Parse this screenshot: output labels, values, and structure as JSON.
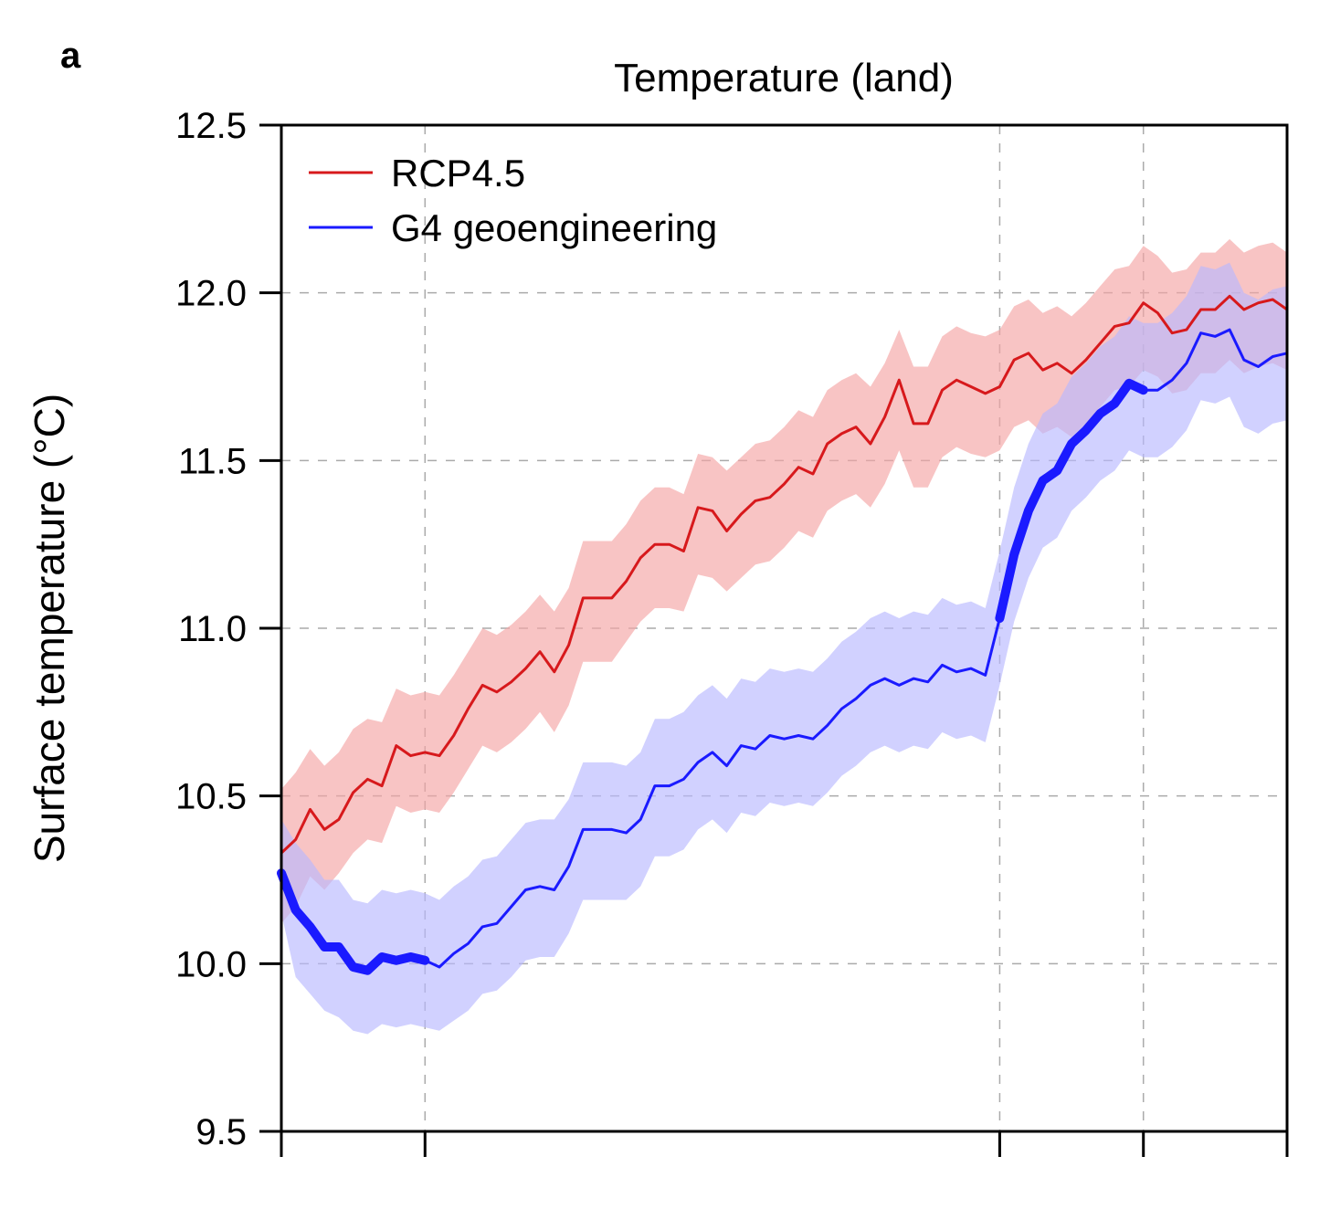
{
  "panel_label": "a",
  "chart_data": {
    "type": "line",
    "title": "Temperature (land)",
    "xlabel": "",
    "ylabel": "Surface temperature (°C)",
    "ylim": [
      9.5,
      12.5
    ],
    "yticks": [
      9.5,
      10.0,
      10.5,
      11.0,
      11.5,
      12.0,
      12.5
    ],
    "ytick_labels": [
      "9.5",
      "10.0",
      "10.5",
      "11.0",
      "11.5",
      "12.0",
      "12.5"
    ],
    "xlim": [
      0,
      70
    ],
    "xticks": [
      0,
      10,
      50,
      60,
      70
    ],
    "xgrid": [
      10,
      50,
      60
    ],
    "grid": true,
    "legend_position": "top-left",
    "x": [
      0,
      1,
      2,
      3,
      4,
      5,
      6,
      7,
      8,
      9,
      10,
      11,
      12,
      13,
      14,
      15,
      16,
      17,
      18,
      19,
      20,
      21,
      22,
      23,
      24,
      25,
      26,
      27,
      28,
      29,
      30,
      31,
      32,
      33,
      34,
      35,
      36,
      37,
      38,
      39,
      40,
      41,
      42,
      43,
      44,
      45,
      46,
      47,
      48,
      49,
      50,
      51,
      52,
      53,
      54,
      55,
      56,
      57,
      58,
      59,
      60,
      61,
      62,
      63,
      64,
      65,
      66,
      67,
      68,
      69,
      70
    ],
    "series": [
      {
        "name": "RCP4.5",
        "color": "#d7191c",
        "band_color": "#f4a5a5",
        "values": [
          10.33,
          10.37,
          10.46,
          10.4,
          10.43,
          10.51,
          10.55,
          10.53,
          10.65,
          10.62,
          10.63,
          10.62,
          10.68,
          10.76,
          10.83,
          10.81,
          10.84,
          10.88,
          10.93,
          10.87,
          10.95,
          11.09,
          11.09,
          11.09,
          11.14,
          11.21,
          11.25,
          11.25,
          11.23,
          11.36,
          11.35,
          11.29,
          11.34,
          11.38,
          11.39,
          11.43,
          11.48,
          11.46,
          11.55,
          11.58,
          11.6,
          11.55,
          11.63,
          11.74,
          11.61,
          11.61,
          11.71,
          11.74,
          11.72,
          11.7,
          11.72,
          11.8,
          11.82,
          11.77,
          11.79,
          11.76,
          11.8,
          11.85,
          11.9,
          11.91,
          11.97,
          11.94,
          11.88,
          11.89,
          11.95,
          11.95,
          11.99,
          11.95,
          11.97,
          11.98,
          11.95
        ],
        "lower": [
          10.12,
          10.17,
          10.26,
          10.22,
          10.27,
          10.33,
          10.37,
          10.36,
          10.47,
          10.45,
          10.46,
          10.45,
          10.51,
          10.58,
          10.65,
          10.63,
          10.66,
          10.7,
          10.75,
          10.69,
          10.77,
          10.9,
          10.9,
          10.9,
          10.96,
          11.02,
          11.06,
          11.06,
          11.05,
          11.16,
          11.15,
          11.11,
          11.15,
          11.19,
          11.2,
          11.24,
          11.29,
          11.27,
          11.35,
          11.38,
          11.4,
          11.36,
          11.43,
          11.53,
          11.42,
          11.42,
          11.51,
          11.54,
          11.52,
          11.51,
          11.53,
          11.6,
          11.62,
          11.58,
          11.6,
          11.57,
          11.61,
          11.66,
          11.71,
          11.72,
          11.77,
          11.75,
          11.7,
          11.71,
          11.76,
          11.76,
          11.8,
          11.76,
          11.78,
          11.79,
          11.77
        ],
        "upper": [
          10.52,
          10.57,
          10.64,
          10.59,
          10.63,
          10.7,
          10.73,
          10.72,
          10.82,
          10.8,
          10.81,
          10.8,
          10.86,
          10.93,
          11.0,
          10.98,
          11.01,
          11.05,
          11.1,
          11.05,
          11.12,
          11.26,
          11.26,
          11.26,
          11.31,
          11.38,
          11.42,
          11.42,
          11.4,
          11.52,
          11.51,
          11.47,
          11.51,
          11.55,
          11.56,
          11.6,
          11.65,
          11.63,
          11.71,
          11.74,
          11.76,
          11.72,
          11.79,
          11.89,
          11.78,
          11.78,
          11.87,
          11.9,
          11.88,
          11.87,
          11.89,
          11.96,
          11.98,
          11.94,
          11.96,
          11.93,
          11.97,
          12.02,
          12.07,
          12.08,
          12.14,
          12.11,
          12.06,
          12.07,
          12.12,
          12.12,
          12.16,
          12.12,
          12.14,
          12.15,
          12.12
        ]
      },
      {
        "name": "G4 geoengineering",
        "color": "#1a1aff",
        "band_color": "#b8b8ff",
        "values": [
          10.27,
          10.16,
          10.11,
          10.05,
          10.05,
          9.99,
          9.98,
          10.02,
          10.01,
          10.02,
          10.01,
          9.99,
          10.03,
          10.06,
          10.11,
          10.12,
          10.17,
          10.22,
          10.23,
          10.22,
          10.29,
          10.4,
          10.4,
          10.4,
          10.39,
          10.43,
          10.53,
          10.53,
          10.55,
          10.6,
          10.63,
          10.59,
          10.65,
          10.64,
          10.68,
          10.67,
          10.68,
          10.67,
          10.71,
          10.76,
          10.79,
          10.83,
          10.85,
          10.83,
          10.85,
          10.84,
          10.89,
          10.87,
          10.88,
          10.86,
          11.03,
          11.22,
          11.35,
          11.44,
          11.47,
          11.55,
          11.59,
          11.64,
          11.67,
          11.73,
          11.71,
          11.71,
          11.74,
          11.79,
          11.88,
          11.87,
          11.89,
          11.8,
          11.78,
          11.81,
          11.82
        ],
        "lower": [
          10.15,
          9.96,
          9.91,
          9.86,
          9.84,
          9.8,
          9.79,
          9.82,
          9.81,
          9.82,
          9.81,
          9.8,
          9.83,
          9.86,
          9.91,
          9.92,
          9.96,
          10.01,
          10.02,
          10.02,
          10.09,
          10.19,
          10.19,
          10.19,
          10.19,
          10.23,
          10.32,
          10.32,
          10.34,
          10.4,
          10.43,
          10.39,
          10.45,
          10.44,
          10.48,
          10.47,
          10.48,
          10.47,
          10.51,
          10.56,
          10.59,
          10.63,
          10.65,
          10.63,
          10.65,
          10.64,
          10.69,
          10.67,
          10.68,
          10.66,
          10.83,
          11.02,
          11.15,
          11.24,
          11.27,
          11.35,
          11.39,
          11.44,
          11.47,
          11.53,
          11.51,
          11.51,
          11.54,
          11.59,
          11.68,
          11.67,
          11.69,
          11.6,
          11.58,
          11.61,
          11.62
        ],
        "upper": [
          10.43,
          10.36,
          10.31,
          10.25,
          10.25,
          10.19,
          10.18,
          10.22,
          10.21,
          10.22,
          10.21,
          10.19,
          10.23,
          10.26,
          10.31,
          10.32,
          10.37,
          10.42,
          10.43,
          10.43,
          10.49,
          10.6,
          10.6,
          10.6,
          10.59,
          10.63,
          10.73,
          10.73,
          10.75,
          10.8,
          10.83,
          10.79,
          10.85,
          10.84,
          10.88,
          10.87,
          10.88,
          10.87,
          10.91,
          10.96,
          10.99,
          11.03,
          11.05,
          11.03,
          11.05,
          11.04,
          11.09,
          11.07,
          11.08,
          11.06,
          11.23,
          11.42,
          11.55,
          11.64,
          11.67,
          11.75,
          11.79,
          11.84,
          11.87,
          11.93,
          11.91,
          11.91,
          11.94,
          11.99,
          12.08,
          12.07,
          12.09,
          12.0,
          11.98,
          12.01,
          12.02
        ],
        "emphasized_ranges": [
          [
            0,
            10
          ],
          [
            50,
            60
          ]
        ]
      }
    ]
  }
}
